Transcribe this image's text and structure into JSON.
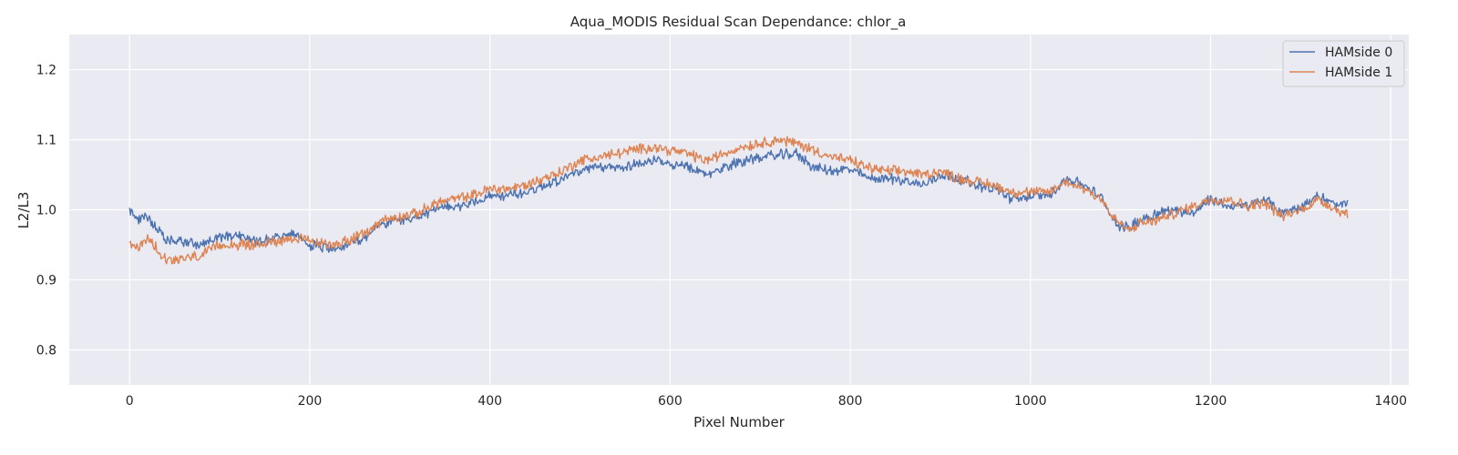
{
  "chart_data": {
    "type": "line",
    "title": "Aqua_MODIS Residual Scan Dependance: chlor_a",
    "xlabel": "Pixel Number",
    "ylabel": "L2/L3",
    "xlim": [
      -67,
      1420
    ],
    "ylim": [
      0.75,
      1.25
    ],
    "xticks": [
      0,
      200,
      400,
      600,
      800,
      1000,
      1200,
      1400
    ],
    "yticks": [
      0.8,
      0.9,
      1.0,
      1.1,
      1.2
    ],
    "xtick_labels": [
      "0",
      "200",
      "400",
      "600",
      "800",
      "1000",
      "1200",
      "1400"
    ],
    "ytick_labels": [
      "0.8",
      "0.9",
      "1.0",
      "1.1",
      "1.2"
    ],
    "grid": true,
    "legend_position": "top-right",
    "colors": {
      "background": "#eaeaf2",
      "grid": "#ffffff"
    },
    "series": [
      {
        "name": "HAMside 0",
        "color": "#4c72b0",
        "x": [
          0,
          10,
          20,
          30,
          40,
          60,
          80,
          100,
          120,
          140,
          160,
          180,
          200,
          220,
          240,
          260,
          280,
          300,
          320,
          340,
          360,
          380,
          400,
          420,
          440,
          460,
          480,
          500,
          520,
          540,
          560,
          580,
          600,
          620,
          640,
          660,
          680,
          700,
          720,
          740,
          760,
          780,
          800,
          820,
          840,
          860,
          880,
          900,
          920,
          940,
          960,
          980,
          1000,
          1020,
          1040,
          1060,
          1080,
          1090,
          1100,
          1110,
          1120,
          1140,
          1160,
          1180,
          1200,
          1220,
          1240,
          1260,
          1280,
          1300,
          1320,
          1340,
          1352
        ],
        "y": [
          1.0,
          0.985,
          0.99,
          0.975,
          0.955,
          0.955,
          0.95,
          0.96,
          0.965,
          0.955,
          0.96,
          0.965,
          0.95,
          0.945,
          0.95,
          0.96,
          0.98,
          0.985,
          0.99,
          1.0,
          1.005,
          1.01,
          1.02,
          1.02,
          1.025,
          1.035,
          1.045,
          1.055,
          1.06,
          1.06,
          1.065,
          1.07,
          1.065,
          1.06,
          1.05,
          1.06,
          1.07,
          1.075,
          1.078,
          1.08,
          1.06,
          1.055,
          1.058,
          1.045,
          1.045,
          1.042,
          1.035,
          1.05,
          1.045,
          1.035,
          1.03,
          1.015,
          1.02,
          1.02,
          1.045,
          1.035,
          1.015,
          0.99,
          0.975,
          0.975,
          0.985,
          0.995,
          1.0,
          0.995,
          1.015,
          1.005,
          1.005,
          1.015,
          0.995,
          1.005,
          1.02,
          1.005,
          1.01
        ]
      },
      {
        "name": "HAMside 1",
        "color": "#dd8452",
        "x": [
          0,
          10,
          20,
          30,
          40,
          60,
          80,
          100,
          120,
          140,
          160,
          180,
          200,
          220,
          240,
          260,
          280,
          300,
          320,
          340,
          360,
          380,
          400,
          420,
          440,
          460,
          480,
          500,
          520,
          540,
          560,
          580,
          600,
          620,
          640,
          660,
          680,
          700,
          720,
          740,
          760,
          780,
          800,
          820,
          840,
          860,
          880,
          900,
          920,
          940,
          960,
          980,
          1000,
          1020,
          1040,
          1060,
          1080,
          1090,
          1100,
          1110,
          1120,
          1140,
          1160,
          1180,
          1200,
          1220,
          1240,
          1260,
          1280,
          1300,
          1320,
          1340,
          1352
        ],
        "y": [
          0.95,
          0.945,
          0.96,
          0.945,
          0.93,
          0.93,
          0.935,
          0.95,
          0.95,
          0.95,
          0.955,
          0.96,
          0.955,
          0.95,
          0.955,
          0.965,
          0.985,
          0.99,
          0.995,
          1.01,
          1.015,
          1.02,
          1.03,
          1.03,
          1.035,
          1.045,
          1.055,
          1.07,
          1.075,
          1.08,
          1.085,
          1.09,
          1.085,
          1.08,
          1.07,
          1.08,
          1.09,
          1.095,
          1.1,
          1.095,
          1.085,
          1.075,
          1.07,
          1.06,
          1.055,
          1.055,
          1.05,
          1.055,
          1.045,
          1.04,
          1.035,
          1.025,
          1.025,
          1.025,
          1.04,
          1.03,
          1.015,
          0.99,
          0.98,
          0.97,
          0.98,
          0.985,
          0.995,
          1.005,
          1.015,
          1.015,
          1.005,
          1.01,
          0.99,
          1.0,
          1.015,
          1.0,
          0.995
        ]
      }
    ]
  }
}
